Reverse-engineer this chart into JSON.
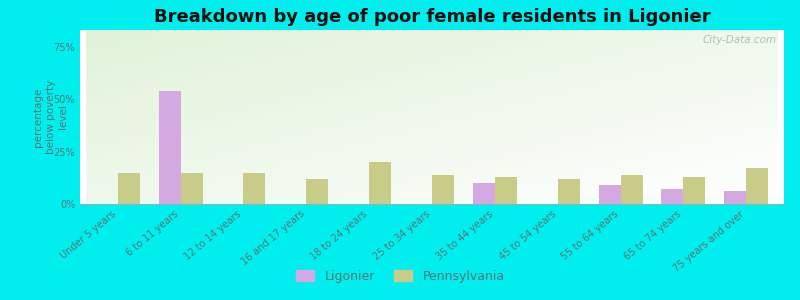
{
  "title": "Breakdown by age of poor female residents in Ligonier",
  "categories": [
    "Under 5 years",
    "6 to 11 years",
    "12 to 14 years",
    "16 and 17 years",
    "18 to 24 years",
    "25 to 34 years",
    "35 to 44 years",
    "45 to 54 years",
    "55 to 64 years",
    "65 to 74 years",
    "75 years and over"
  ],
  "ligonier_values": [
    0,
    54,
    0,
    0,
    0,
    0,
    10,
    0,
    9,
    7,
    6
  ],
  "pennsylvania_values": [
    15,
    15,
    15,
    12,
    20,
    14,
    13,
    12,
    14,
    13,
    17
  ],
  "ligonier_color": "#d4a8e0",
  "pennsylvania_color": "#c8cc88",
  "ylabel": "percentage\nbelow poverty\nlevel",
  "ylim": [
    0,
    83
  ],
  "yticks": [
    0,
    25,
    50,
    75
  ],
  "ytick_labels": [
    "0%",
    "25%",
    "50%",
    "75%"
  ],
  "bg_outer": "#00eeee",
  "bar_width": 0.35,
  "title_fontsize": 13,
  "axis_label_fontsize": 7.5,
  "tick_fontsize": 7,
  "legend_fontsize": 9,
  "tick_color": "#557777",
  "label_color": "#557777",
  "title_color": "#111111"
}
